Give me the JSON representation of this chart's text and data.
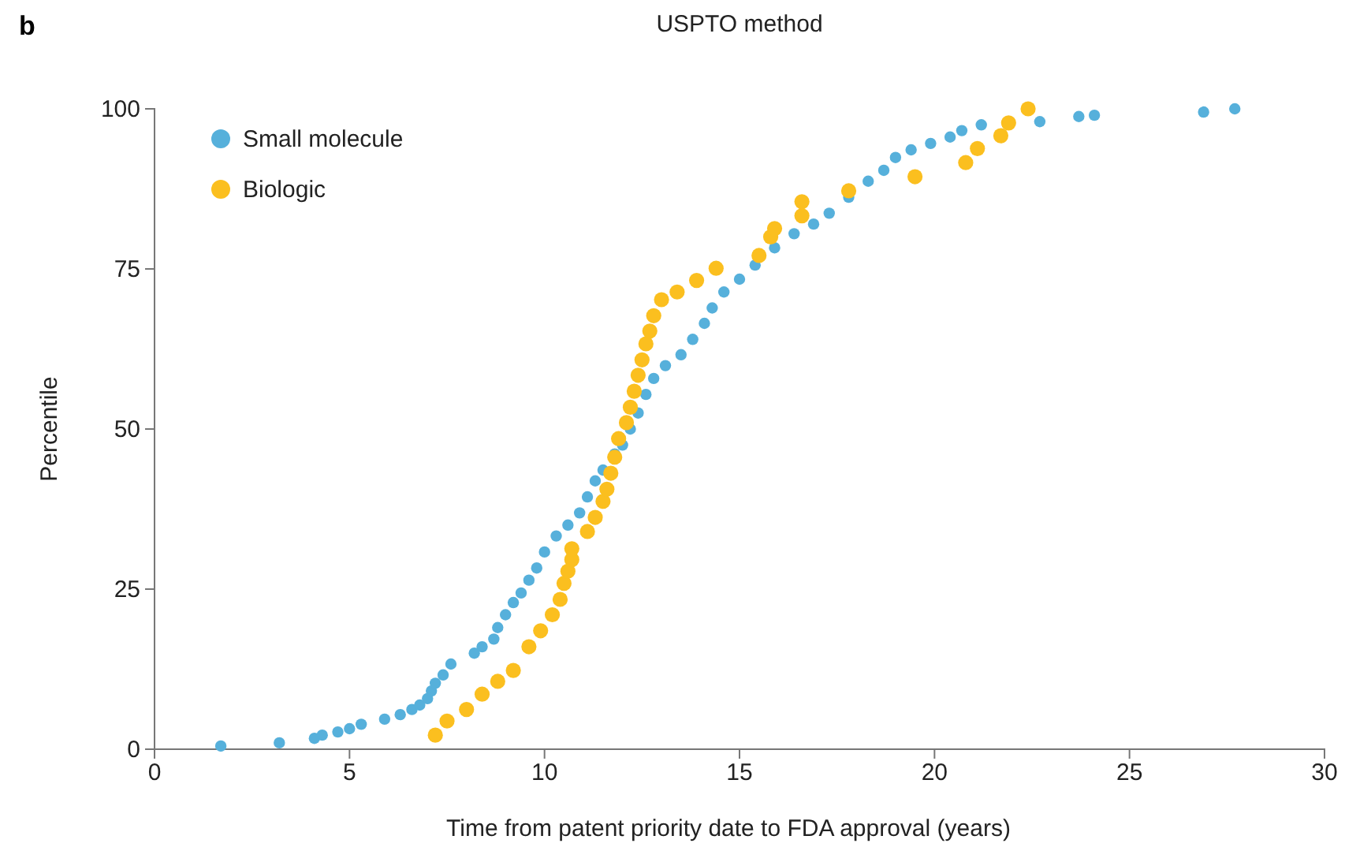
{
  "chart_data": {
    "type": "scatter",
    "title": "USPTO method",
    "xlabel": "Time from patent priority date to FDA approval (years)",
    "ylabel": "Percentile",
    "annotations": [
      "b"
    ],
    "xlim": [
      0,
      30
    ],
    "xticks": [
      0,
      5,
      10,
      15,
      20,
      25,
      30
    ],
    "ylim": [
      0,
      100
    ],
    "yticks": [
      0,
      25,
      50,
      75,
      100
    ],
    "grid": false,
    "legend": "top left",
    "marker": "circle",
    "series": [
      {
        "name": "Small molecule",
        "color": "#56b0db",
        "x": [
          1.7,
          3.2,
          4.1,
          4.3,
          4.7,
          5.0,
          5.3,
          5.9,
          6.3,
          6.6,
          6.8,
          7.0,
          7.1,
          7.2,
          7.4,
          7.6,
          8.2,
          8.4,
          8.7,
          8.8,
          9.0,
          9.2,
          9.4,
          9.6,
          9.8,
          10.0,
          10.3,
          10.6,
          10.9,
          11.1,
          11.3,
          11.5,
          11.8,
          12.0,
          12.2,
          12.4,
          12.6,
          12.8,
          13.1,
          13.5,
          13.8,
          14.1,
          14.3,
          14.6,
          15.0,
          15.4,
          15.9,
          16.4,
          16.9,
          17.3,
          17.8,
          18.3,
          18.7,
          19.0,
          19.4,
          19.9,
          20.4,
          20.7,
          21.2,
          22.7,
          23.7,
          24.1,
          26.9,
          27.7
        ],
        "values": [
          0.5,
          1,
          1.7,
          2.2,
          2.7,
          3.2,
          3.9,
          4.7,
          5.4,
          6.2,
          6.9,
          7.9,
          9.1,
          10.3,
          11.6,
          13.3,
          15,
          16,
          17.2,
          19,
          21,
          22.9,
          24.4,
          26.4,
          28.3,
          30.8,
          33.3,
          35,
          36.9,
          39.4,
          41.9,
          43.6,
          46.1,
          47.5,
          50,
          52.5,
          55.4,
          57.9,
          59.9,
          61.6,
          64,
          66.5,
          68.9,
          71.4,
          73.4,
          75.6,
          78.3,
          80.5,
          82,
          83.7,
          86.2,
          88.7,
          90.4,
          92.4,
          93.6,
          94.6,
          95.6,
          96.6,
          97.5,
          98,
          98.8,
          99,
          99.5,
          100
        ]
      },
      {
        "name": "Biologic",
        "color": "#fbbf1f",
        "x": [
          7.2,
          7.5,
          8.0,
          8.4,
          8.8,
          9.2,
          9.6,
          9.9,
          10.2,
          10.4,
          10.5,
          10.6,
          10.7,
          10.7,
          11.1,
          11.3,
          11.5,
          11.6,
          11.7,
          11.8,
          11.9,
          12.1,
          12.2,
          12.3,
          12.4,
          12.5,
          12.6,
          12.7,
          12.8,
          13.0,
          13.4,
          13.9,
          14.4,
          15.5,
          15.8,
          15.9,
          16.6,
          16.6,
          17.8,
          19.5,
          20.8,
          21.1,
          21.7,
          21.9,
          22.4
        ],
        "values": [
          2.2,
          4.4,
          6.2,
          8.6,
          10.6,
          12.3,
          16,
          18.5,
          21,
          23.4,
          25.9,
          27.8,
          29.6,
          31.3,
          34,
          36.2,
          38.7,
          40.6,
          43.1,
          45.6,
          48.5,
          51,
          53.4,
          55.9,
          58.4,
          60.8,
          63.3,
          65.3,
          67.7,
          70.2,
          71.4,
          73.2,
          75.1,
          77.1,
          80,
          81.3,
          83.3,
          85.5,
          87.2,
          89.4,
          91.6,
          93.8,
          95.8,
          97.8,
          100
        ]
      }
    ]
  }
}
